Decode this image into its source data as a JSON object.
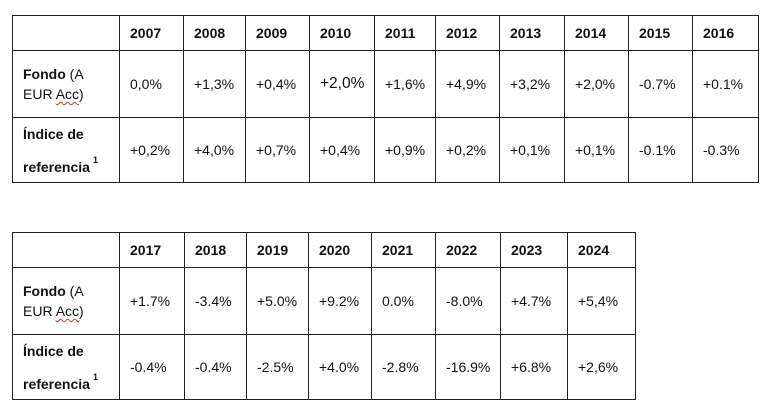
{
  "table1": {
    "years": [
      "2007",
      "2008",
      "2009",
      "2010",
      "2011",
      "2012",
      "2013",
      "2014",
      "2015",
      "2016"
    ],
    "fund_label_bold": "Fondo",
    "fund_label_a": " (A",
    "fund_label_eur": "EUR",
    "fund_label_acc": "Acc",
    "fund_label_close": ")",
    "fund_values": [
      "0,0%",
      "+1,3%",
      "+0,4%",
      "+2,0%",
      "+1,6%",
      "+4,9%",
      "+3,2%",
      "+2,0%",
      "-0.7%",
      "+0.1%"
    ],
    "index_label_line1": "Índice de",
    "index_label_line2": "referencia",
    "index_footnote": "1",
    "index_values": [
      "+0,2%",
      "+4,0%",
      "+0,7%",
      "+0,4%",
      "+0,9%",
      "+0,2%",
      "+0,1%",
      "+0,1%",
      "-0.1%",
      "-0.3%"
    ]
  },
  "table2": {
    "years": [
      "2017",
      "2018",
      "2019",
      "2020",
      "2021",
      "2022",
      "2023",
      "2024"
    ],
    "fund_label_bold": "Fondo",
    "fund_label_a": " (A",
    "fund_label_eur": "EUR",
    "fund_label_acc": "Acc",
    "fund_label_close": ")",
    "fund_values": [
      "+1.7%",
      "-3.4%",
      "+5.0%",
      "+9.2%",
      "0.0%",
      "-8.0%",
      "+4.7%",
      "+5,4%"
    ],
    "index_label_line1": "Índice de",
    "index_label_line2": "referencia",
    "index_footnote": "1",
    "index_values": [
      "-0.4%",
      "-0.4%",
      "-2.5%",
      "+4.0%",
      "-2.8%",
      "-16.9%",
      "+6.8%",
      "+2,6%"
    ]
  }
}
